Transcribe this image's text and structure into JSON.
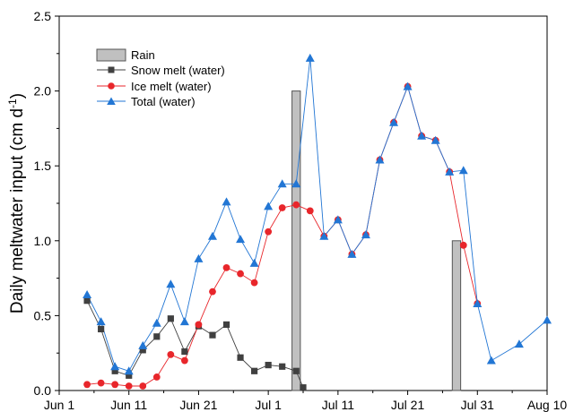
{
  "chart_data": {
    "type": "line",
    "ylabel_main": "Daily meltwater input (cm d",
    "ylabel_sup": "-1",
    "ylabel_close": ")",
    "xlabel": "",
    "ylim": [
      0,
      2.5
    ],
    "xlim": [
      "2019-06-01",
      "2019-08-10"
    ],
    "grid": false,
    "legend_position": "top-left",
    "x_ticks": [
      {
        "date": "2019-06-01",
        "label": "Jun 1"
      },
      {
        "date": "2019-06-11",
        "label": "Jun 11"
      },
      {
        "date": "2019-06-21",
        "label": "Jun 21"
      },
      {
        "date": "2019-07-01",
        "label": "Jul 1"
      },
      {
        "date": "2019-07-11",
        "label": "Jul 11"
      },
      {
        "date": "2019-07-21",
        "label": "Jul 21"
      },
      {
        "date": "2019-07-31",
        "label": "Jul 31"
      },
      {
        "date": "2019-08-10",
        "label": "Aug 10"
      }
    ],
    "y_ticks": [
      {
        "value": 0.0,
        "label": "0.0"
      },
      {
        "value": 0.5,
        "label": "0.5"
      },
      {
        "value": 1.0,
        "label": "1.0"
      },
      {
        "value": 1.5,
        "label": "1.5"
      },
      {
        "value": 2.0,
        "label": "2.0"
      },
      {
        "value": 2.5,
        "label": "2.5"
      }
    ],
    "rain": {
      "name": "Rain",
      "color": "#c0c0c0",
      "bars": [
        {
          "date": "2019-07-05",
          "value": 2.0
        },
        {
          "date": "2019-07-28",
          "value": 1.0
        }
      ]
    },
    "series": [
      {
        "name": "Snow melt (water)",
        "color": "#404040",
        "marker": "square",
        "points": [
          [
            "2019-06-05",
            0.6
          ],
          [
            "2019-06-07",
            0.41
          ],
          [
            "2019-06-09",
            0.13
          ],
          [
            "2019-06-11",
            0.1
          ],
          [
            "2019-06-13",
            0.27
          ],
          [
            "2019-06-15",
            0.36
          ],
          [
            "2019-06-17",
            0.48
          ],
          [
            "2019-06-19",
            0.26
          ],
          [
            "2019-06-21",
            0.43
          ],
          [
            "2019-06-23",
            0.37
          ],
          [
            "2019-06-25",
            0.44
          ],
          [
            "2019-06-27",
            0.22
          ],
          [
            "2019-06-29",
            0.13
          ],
          [
            "2019-07-01",
            0.17
          ],
          [
            "2019-07-03",
            0.16
          ],
          [
            "2019-07-05",
            0.13
          ],
          [
            "2019-07-06",
            0.02
          ]
        ]
      },
      {
        "name": "Ice melt (water)",
        "color": "#e8262b",
        "marker": "circle",
        "points": [
          [
            "2019-06-05",
            0.04
          ],
          [
            "2019-06-07",
            0.05
          ],
          [
            "2019-06-09",
            0.04
          ],
          [
            "2019-06-11",
            0.03
          ],
          [
            "2019-06-13",
            0.03
          ],
          [
            "2019-06-15",
            0.09
          ],
          [
            "2019-06-17",
            0.24
          ],
          [
            "2019-06-19",
            0.2
          ],
          [
            "2019-06-21",
            0.44
          ],
          [
            "2019-06-23",
            0.66
          ],
          [
            "2019-06-25",
            0.82
          ],
          [
            "2019-06-27",
            0.78
          ],
          [
            "2019-06-29",
            0.72
          ],
          [
            "2019-07-01",
            1.06
          ],
          [
            "2019-07-03",
            1.22
          ],
          [
            "2019-07-05",
            1.24
          ],
          [
            "2019-07-07",
            1.2
          ],
          [
            "2019-07-09",
            1.03
          ],
          [
            "2019-07-11",
            1.14
          ],
          [
            "2019-07-13",
            0.91
          ],
          [
            "2019-07-15",
            1.04
          ],
          [
            "2019-07-17",
            1.54
          ],
          [
            "2019-07-19",
            1.79
          ],
          [
            "2019-07-21",
            2.03
          ],
          [
            "2019-07-23",
            1.7
          ],
          [
            "2019-07-25",
            1.67
          ],
          [
            "2019-07-27",
            1.46
          ],
          [
            "2019-07-29",
            0.97
          ],
          [
            "2019-07-31",
            0.58
          ]
        ]
      },
      {
        "name": "Total (water)",
        "color": "#2276d4",
        "marker": "triangle",
        "points": [
          [
            "2019-06-05",
            0.64
          ],
          [
            "2019-06-07",
            0.46
          ],
          [
            "2019-06-09",
            0.16
          ],
          [
            "2019-06-11",
            0.13
          ],
          [
            "2019-06-13",
            0.3
          ],
          [
            "2019-06-15",
            0.45
          ],
          [
            "2019-06-17",
            0.71
          ],
          [
            "2019-06-19",
            0.46
          ],
          [
            "2019-06-21",
            0.88
          ],
          [
            "2019-06-23",
            1.03
          ],
          [
            "2019-06-25",
            1.26
          ],
          [
            "2019-06-27",
            1.01
          ],
          [
            "2019-06-29",
            0.85
          ],
          [
            "2019-07-01",
            1.23
          ],
          [
            "2019-07-03",
            1.38
          ],
          [
            "2019-07-05",
            1.38
          ],
          [
            "2019-07-07",
            2.22
          ],
          [
            "2019-07-09",
            1.03
          ],
          [
            "2019-07-11",
            1.14
          ],
          [
            "2019-07-13",
            0.91
          ],
          [
            "2019-07-15",
            1.04
          ],
          [
            "2019-07-17",
            1.54
          ],
          [
            "2019-07-19",
            1.79
          ],
          [
            "2019-07-21",
            2.03
          ],
          [
            "2019-07-23",
            1.7
          ],
          [
            "2019-07-25",
            1.67
          ],
          [
            "2019-07-27",
            1.46
          ],
          [
            "2019-07-29",
            1.47
          ],
          [
            "2019-07-31",
            0.58
          ],
          [
            "2019-08-02",
            0.2
          ],
          [
            "2019-08-06",
            0.31
          ],
          [
            "2019-08-10",
            0.47
          ]
        ]
      }
    ]
  }
}
